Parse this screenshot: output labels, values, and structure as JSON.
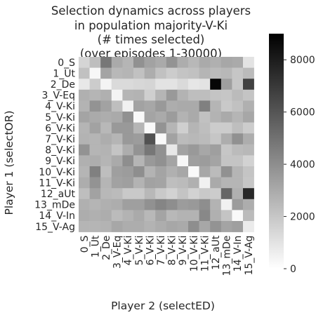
{
  "chart_data": {
    "type": "heatmap",
    "title": [
      "Selection dynamics across players",
      "in population majority-V-Ki",
      "(# times selected)",
      "(over episodes 1-30000)"
    ],
    "xlabel": "Player 2 (selectED)",
    "ylabel": "Player 1 (selectOR)",
    "row_labels": [
      "0_S",
      "1_Ut",
      "2_De",
      "3_V-Eq",
      "4_V-Ki",
      "5_V-Ki",
      "6_V-Ki",
      "7_V-Ki",
      "8_V-Ki",
      "9_V-Ki",
      "10_V-Ki",
      "11_V-Ki",
      "12_aUt",
      "13_mDe",
      "14_V-In",
      "15_V-Ag"
    ],
    "col_labels": [
      "0_S",
      "1_Ut",
      "2_De",
      "3_V-Eq",
      "4_V-Ki",
      "5_V-Ki",
      "6_V-Ki",
      "7_V-Ki",
      "8_V-Ki",
      "9_V-Ki",
      "10_V-Ki",
      "11_V-Ki",
      "12_aUt",
      "13_mDe",
      "14_V-In",
      "15_V-Ag"
    ],
    "values": [
      [
        1500,
        2300,
        4800,
        3000,
        2600,
        3900,
        3300,
        3000,
        3800,
        2900,
        2500,
        3000,
        2800,
        3100,
        3000,
        1000
      ],
      [
        2200,
        300,
        3200,
        2500,
        2600,
        2200,
        2900,
        2200,
        1800,
        2100,
        2200,
        2600,
        2400,
        2500,
        2000,
        2400
      ],
      [
        800,
        1800,
        400,
        1300,
        1300,
        1400,
        1500,
        1000,
        1000,
        1300,
        900,
        1000,
        8800,
        3400,
        2000,
        6700
      ],
      [
        2800,
        2600,
        2800,
        400,
        2600,
        2700,
        1700,
        2600,
        3600,
        2700,
        2300,
        2300,
        2100,
        2000,
        2400,
        2100
      ],
      [
        2700,
        3800,
        3300,
        2300,
        500,
        3300,
        3100,
        3600,
        2900,
        3000,
        3000,
        4500,
        2600,
        1900,
        2200,
        2800
      ],
      [
        3200,
        3000,
        2900,
        3000,
        3900,
        200,
        3200,
        3000,
        3500,
        2700,
        3000,
        2200,
        2700,
        3000,
        2600,
        3100
      ],
      [
        2600,
        3300,
        2500,
        3600,
        3600,
        2600,
        200,
        3800,
        2600,
        1700,
        2600,
        2300,
        1800,
        1800,
        2300,
        1800
      ],
      [
        2700,
        2600,
        2900,
        2600,
        3600,
        3500,
        6100,
        200,
        3300,
        2400,
        2500,
        2400,
        2000,
        2900,
        3900,
        2900
      ],
      [
        3800,
        2600,
        2700,
        2100,
        2900,
        3800,
        4800,
        3900,
        800,
        3300,
        3600,
        3100,
        3400,
        2000,
        2400,
        2500
      ],
      [
        2800,
        2900,
        2600,
        3000,
        4000,
        2600,
        3600,
        3900,
        3200,
        300,
        3400,
        3500,
        3200,
        2100,
        2100,
        1600
      ],
      [
        2600,
        4500,
        2300,
        3400,
        3500,
        4000,
        2700,
        3200,
        2800,
        3100,
        200,
        3100,
        2400,
        3900,
        2600,
        2100
      ],
      [
        2900,
        3800,
        2600,
        3300,
        3400,
        2700,
        3300,
        3200,
        2300,
        2400,
        2800,
        500,
        3000,
        2600,
        2600,
        2000
      ],
      [
        2300,
        3300,
        2500,
        2400,
        1900,
        1900,
        2500,
        1900,
        1600,
        2100,
        1600,
        1900,
        1800,
        5400,
        2800,
        7600
      ],
      [
        2800,
        2600,
        2800,
        2900,
        3400,
        3400,
        3900,
        4300,
        4000,
        3500,
        3600,
        4000,
        2700,
        500,
        3500,
        2900
      ],
      [
        2900,
        2800,
        2900,
        2400,
        2700,
        3000,
        2500,
        3200,
        2500,
        2700,
        2700,
        4200,
        2800,
        2100,
        200,
        2400
      ],
      [
        2600,
        2600,
        2700,
        3100,
        2900,
        2900,
        2700,
        2900,
        3100,
        3000,
        4000,
        3100,
        3800,
        3200,
        3400,
        700
      ]
    ],
    "vmin": 0,
    "vmax": 9000,
    "colorbar_ticks": [
      0,
      2000,
      4000,
      6000,
      8000
    ],
    "colormap": {
      "low": "#ffffff",
      "high": "#000000"
    },
    "grid": false
  }
}
